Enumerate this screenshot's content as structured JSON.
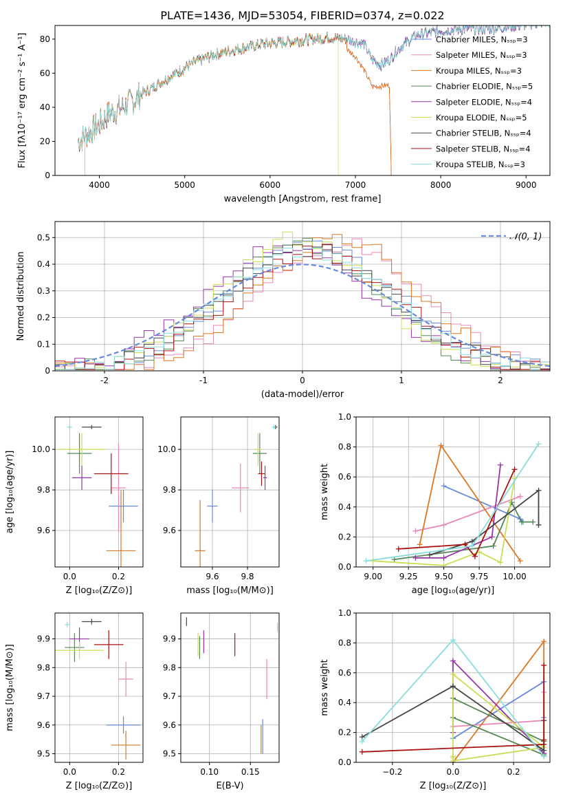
{
  "figure": {
    "title": "PLATE=1436, MJD=53054, FIBERID=0374, z=0.022"
  },
  "colors": [
    "#6688dd",
    "#e888b8",
    "#dd7722",
    "#558855",
    "#9933aa",
    "#ccdd55",
    "#444444",
    "#aa1111",
    "#88dddd"
  ],
  "models": [
    "Chabrier MILES",
    "Salpeter MILES",
    "Kroupa MILES",
    "Chabrier ELODIE",
    "Salpeter ELODIE",
    "Kroupa ELODIE",
    "Chabrier STELIB",
    "Salpeter STELIB",
    "Kroupa STELIB"
  ],
  "chart_data": [
    {
      "type": "line",
      "id": "spectrum",
      "xlabel": "wavelength [Angstrom, rest frame]",
      "ylabel": "Flux [fλ10⁻¹⁷ erg cm⁻² s⁻¹ A⁻¹]",
      "xlim": [
        3480,
        9280
      ],
      "ylim": [
        0,
        88
      ],
      "xticks": [
        4000,
        5000,
        6000,
        7000,
        8000,
        9000
      ],
      "yticks": [
        0,
        20,
        40,
        60,
        80
      ],
      "legend_position": "right",
      "series": [
        {
          "name": "Chabrier MILES, Nₛₛₚ=3"
        },
        {
          "name": "Salpeter MILES, Nₛₛₚ=3"
        },
        {
          "name": "Kroupa MILES, Nₛₛₚ=3"
        },
        {
          "name": "Chabrier ELODIE, Nₛₛₚ=5"
        },
        {
          "name": "Salpeter ELODIE, Nₛₛₚ=4"
        },
        {
          "name": "Kroupa ELODIE, Nₛₛₚ=5"
        },
        {
          "name": "Chabrier STELIB, Nₛₛₚ=4"
        },
        {
          "name": "Salpeter STELIB, Nₛₛₚ=4"
        },
        {
          "name": "Kroupa STELIB, Nₛₛₚ=3"
        }
      ],
      "continuum": [
        [
          3750,
          20
        ],
        [
          3900,
          26
        ],
        [
          4000,
          30
        ],
        [
          4100,
          36
        ],
        [
          4200,
          38
        ],
        [
          4300,
          41
        ],
        [
          4400,
          44
        ],
        [
          4500,
          48
        ],
        [
          4700,
          54
        ],
        [
          4900,
          60
        ],
        [
          5100,
          66
        ],
        [
          5300,
          70
        ],
        [
          5500,
          73
        ],
        [
          5700,
          75
        ],
        [
          5900,
          77
        ],
        [
          6100,
          78
        ],
        [
          6300,
          79
        ],
        [
          6500,
          80
        ],
        [
          6700,
          81
        ],
        [
          6900,
          80
        ],
        [
          7100,
          77
        ],
        [
          7200,
          68
        ],
        [
          7300,
          65
        ],
        [
          7400,
          68
        ],
        [
          7500,
          74
        ],
        [
          7700,
          82
        ],
        [
          8000,
          85
        ],
        [
          8300,
          86
        ],
        [
          8600,
          86
        ],
        [
          8900,
          88
        ],
        [
          9200,
          90
        ]
      ],
      "orange_red_branch": [
        [
          6900,
          74
        ],
        [
          7000,
          70
        ],
        [
          7100,
          62
        ],
        [
          7200,
          52
        ],
        [
          7400,
          53
        ],
        [
          7420,
          0
        ]
      ],
      "features": [
        {
          "x": 3830,
          "y": 0
        },
        {
          "x": 4330,
          "y": 34
        },
        {
          "x": 5180,
          "y": 48
        },
        {
          "x": 5890,
          "y": 58
        },
        {
          "x": 6560,
          "y": 65
        },
        {
          "x": 6800,
          "y": 0
        },
        {
          "x": 7420,
          "y": 0
        }
      ]
    },
    {
      "type": "bar",
      "id": "residual-hist",
      "xlabel": "(data-model)/error",
      "ylabel": "Normed distribution",
      "xlim": [
        -2.5,
        2.5
      ],
      "ylim": [
        0,
        0.56
      ],
      "xticks": [
        -2,
        -1,
        0,
        1,
        2
      ],
      "yticks": [
        0.0,
        0.1,
        0.2,
        0.3,
        0.4,
        0.5
      ],
      "legend": "𝒩(0, 1)",
      "legend_position": "top-right",
      "bin_width": 0.1,
      "series": [
        {
          "mu": 0.1,
          "sigma": 0.85,
          "peak": 0.47
        },
        {
          "mu": 0.4,
          "sigma": 0.85,
          "peak": 0.47
        },
        {
          "mu": 0.35,
          "sigma": 0.8,
          "peak": 0.5
        },
        {
          "mu": 0.0,
          "sigma": 0.8,
          "peak": 0.47
        },
        {
          "mu": -0.15,
          "sigma": 0.85,
          "peak": 0.46
        },
        {
          "mu": -0.05,
          "sigma": 0.78,
          "peak": 0.5
        },
        {
          "mu": 0.05,
          "sigma": 0.85,
          "peak": 0.46
        },
        {
          "mu": 0.1,
          "sigma": 0.85,
          "peak": 0.45
        },
        {
          "mu": 0.05,
          "sigma": 0.85,
          "peak": 0.46
        }
      ]
    },
    {
      "type": "scatter",
      "id": "age-vs-Z",
      "xlabel": "Z [log₁₀(Z/Z⊙)]",
      "ylabel": "age  [log₁₀(age/yr)]",
      "xlim": [
        -0.06,
        0.3
      ],
      "ylim": [
        9.42,
        10.16
      ],
      "xticks": [
        0.0,
        0.2
      ],
      "xticklabels": [
        "0.0",
        "0.2"
      ],
      "yticks": [
        9.6,
        9.8,
        10.0
      ],
      "yticklabels": [
        "9.6",
        "9.8",
        "10.0"
      ],
      "points": [
        {
          "x": 0.22,
          "y": 9.72,
          "ex": 0.06,
          "ey": 0.08
        },
        {
          "x": 0.2,
          "y": 9.81,
          "ex": 0.03,
          "ey": 0.22
        },
        {
          "x": 0.21,
          "y": 9.5,
          "ex": 0.06,
          "ey": 0.3
        },
        {
          "x": 0.04,
          "y": 9.98,
          "ex": 0.05,
          "ey": 0.1
        },
        {
          "x": 0.05,
          "y": 9.86,
          "ex": 0.04,
          "ey": 0.06
        },
        {
          "x": 0.05,
          "y": 10.0,
          "ex": 0.1,
          "ey": 0.08
        },
        {
          "x": 0.09,
          "y": 10.11,
          "ex": 0.04,
          "ey": 0.01
        },
        {
          "x": 0.17,
          "y": 9.88,
          "ex": 0.07,
          "ey": 0.1
        },
        {
          "x": 0.0,
          "y": 10.11,
          "ex": 0.01,
          "ey": 0.01
        }
      ]
    },
    {
      "type": "scatter",
      "id": "age-vs-mass",
      "xlabel": "mass [log₁₀(M/M⊙)]",
      "ylabel": "",
      "xlim": [
        9.42,
        9.98
      ],
      "ylim": [
        9.42,
        10.16
      ],
      "xticks": [
        9.6,
        9.8
      ],
      "xticklabels": [
        "9.6",
        "9.8"
      ],
      "yticks": [
        9.6,
        9.8,
        10.0
      ],
      "yticklabels": [
        "9.6",
        "9.8",
        "10.0"
      ],
      "points": [
        {
          "x": 9.6,
          "y": 9.72,
          "ex": 0.03,
          "ey": 0.08
        },
        {
          "x": 9.76,
          "y": 9.81,
          "ex": 0.05,
          "ey": 0.12
        },
        {
          "x": 9.53,
          "y": 9.5,
          "ex": 0.03,
          "ey": 0.25
        },
        {
          "x": 9.87,
          "y": 9.98,
          "ex": 0.04,
          "ey": 0.1
        },
        {
          "x": 9.9,
          "y": 9.86,
          "ex": 0.01,
          "ey": 0.06
        },
        {
          "x": 9.86,
          "y": 10.0,
          "ex": 0.02,
          "ey": 0.08
        },
        {
          "x": 9.96,
          "y": 10.11,
          "ex": 0.01,
          "ey": 0.01
        },
        {
          "x": 9.88,
          "y": 9.88,
          "ex": 0.02,
          "ey": 0.06
        },
        {
          "x": 9.95,
          "y": 10.11,
          "ex": 0.01,
          "ey": 0.01
        }
      ]
    },
    {
      "type": "line",
      "id": "weight-vs-age",
      "xlabel": "age  [log₁₀(age/yr)]",
      "ylabel": "mass weight",
      "xlim": [
        8.88,
        10.25
      ],
      "ylim": [
        0.0,
        1.0
      ],
      "xticks": [
        9.0,
        9.25,
        9.5,
        9.75,
        10.0
      ],
      "xticklabels": [
        "9.00",
        "9.25",
        "9.50",
        "9.75",
        "10.00"
      ],
      "yticks": [
        0.0,
        0.2,
        0.4,
        0.6,
        0.8,
        1.0
      ],
      "yticklabels": [
        "0.0",
        "0.2",
        "0.4",
        "0.6",
        "0.8",
        "1.0"
      ],
      "series": [
        {
          "x": [
            9.5,
            10.04,
            10.06
          ],
          "y": [
            0.54,
            0.32,
            0.3
          ]
        },
        {
          "x": [
            9.3,
            9.5,
            10.04
          ],
          "y": [
            0.24,
            0.28,
            0.47
          ]
        },
        {
          "x": [
            9.33,
            9.48,
            10.04
          ],
          "y": [
            0.15,
            0.81,
            0.04
          ]
        },
        {
          "x": [
            9.15,
            9.85,
            9.98,
            10.05,
            10.13
          ],
          "y": [
            0.05,
            0.14,
            0.43,
            0.3,
            0.3
          ]
        },
        {
          "x": [
            9.3,
            9.5,
            9.84,
            9.9
          ],
          "y": [
            0.06,
            0.06,
            0.2,
            0.68
          ]
        },
        {
          "x": [
            9.0,
            9.5,
            9.75,
            9.9,
            10.0
          ],
          "y": [
            0.04,
            0.01,
            0.1,
            0.03,
            0.59
          ]
        },
        {
          "x": [
            9.4,
            9.7,
            10.17,
            10.17
          ],
          "y": [
            0.08,
            0.17,
            0.51,
            0.28
          ]
        },
        {
          "x": [
            9.18,
            9.65,
            9.72,
            10.0
          ],
          "y": [
            0.12,
            0.15,
            0.07,
            0.65
          ]
        },
        {
          "x": [
            8.95,
            9.7,
            10.17
          ],
          "y": [
            0.04,
            0.14,
            0.82
          ]
        }
      ]
    },
    {
      "type": "scatter",
      "id": "mass-vs-Z",
      "xlabel": "Z [log₁₀(Z/Z⊙)]",
      "ylabel": "mass [log₁₀(M/M⊙)]",
      "xlim": [
        -0.06,
        0.3
      ],
      "ylim": [
        9.47,
        9.99
      ],
      "xticks": [
        0.0,
        0.2
      ],
      "xticklabels": [
        "0.0",
        "0.2"
      ],
      "yticks": [
        9.5,
        9.6,
        9.7,
        9.8,
        9.9
      ],
      "yticklabels": [
        "9.5",
        "9.6",
        "9.7",
        "9.8",
        "9.9"
      ],
      "points": [
        {
          "x": 0.22,
          "y": 9.6,
          "ex": 0.07,
          "ey": 0.03
        },
        {
          "x": 0.23,
          "y": 9.76,
          "ex": 0.03,
          "ey": 0.06
        },
        {
          "x": 0.23,
          "y": 9.53,
          "ex": 0.06,
          "ey": 0.05
        },
        {
          "x": 0.02,
          "y": 9.87,
          "ex": 0.04,
          "ey": 0.05
        },
        {
          "x": 0.04,
          "y": 9.9,
          "ex": 0.04,
          "ey": 0.04
        },
        {
          "x": 0.04,
          "y": 9.86,
          "ex": 0.1,
          "ey": 0.03
        },
        {
          "x": 0.09,
          "y": 9.96,
          "ex": 0.04,
          "ey": 0.01
        },
        {
          "x": 0.16,
          "y": 9.88,
          "ex": 0.06,
          "ey": 0.05
        },
        {
          "x": -0.01,
          "y": 9.95,
          "ex": 0.01,
          "ey": 0.01
        }
      ]
    },
    {
      "type": "scatter",
      "id": "mass-vs-EBV",
      "xlabel": "E(B-V)",
      "ylabel": "",
      "xlim": [
        0.065,
        0.185
      ],
      "ylim": [
        9.47,
        9.99
      ],
      "xticks": [
        0.1,
        0.15
      ],
      "xticklabels": [
        "0.10",
        "0.15"
      ],
      "yticks": [
        9.5,
        9.6,
        9.7,
        9.8,
        9.9
      ],
      "yticklabels": [
        "9.5",
        "9.6",
        "9.7",
        "9.8",
        "9.9"
      ],
      "points": [
        {
          "x": 0.165,
          "y": 9.56,
          "ex": 0,
          "ey": 0.06
        },
        {
          "x": 0.17,
          "y": 9.76,
          "ex": 0,
          "ey": 0.07
        },
        {
          "x": 0.163,
          "y": 9.55,
          "ex": 0,
          "ey": 0.05
        },
        {
          "x": 0.088,
          "y": 9.87,
          "ex": 0,
          "ey": 0.04
        },
        {
          "x": 0.093,
          "y": 9.89,
          "ex": 0,
          "ey": 0.04
        },
        {
          "x": 0.086,
          "y": 9.88,
          "ex": 0,
          "ey": 0.04
        },
        {
          "x": 0.072,
          "y": 9.96,
          "ex": 0,
          "ey": 0.015
        },
        {
          "x": 0.131,
          "y": 9.88,
          "ex": 0,
          "ey": 0.04
        },
        {
          "x": 0.183,
          "y": 9.94,
          "ex": 0,
          "ey": 0.015
        }
      ]
    },
    {
      "type": "line",
      "id": "weight-vs-Z",
      "xlabel": "Z [log₁₀(Z/Z⊙)]",
      "ylabel": "mass weight",
      "xlim": [
        -0.32,
        0.32
      ],
      "ylim": [
        0.0,
        1.0
      ],
      "xticks": [
        -0.2,
        0.0,
        0.2
      ],
      "xticklabels": [
        "−0.2",
        "0.0",
        "0.2"
      ],
      "yticks": [
        0.0,
        0.2,
        0.4,
        0.6,
        0.8,
        1.0
      ],
      "yticklabels": [
        "0.0",
        "0.2",
        "0.4",
        "0.6",
        "0.8",
        "1.0"
      ],
      "series": [
        {
          "x": [
            0.0,
            0.3,
            0.3
          ],
          "y": [
            0.16,
            0.54,
            0.3
          ]
        },
        {
          "x": [
            0.0,
            0.3,
            0.3
          ],
          "y": [
            0.24,
            0.28,
            0.47
          ]
        },
        {
          "x": [
            0.0,
            0.3,
            0.3
          ],
          "y": [
            0.0,
            0.81,
            0.04
          ]
        },
        {
          "x": [
            0.0,
            0.3,
            0.3,
            0.0,
            0.0
          ],
          "y": [
            0.3,
            0.05,
            0.14,
            0.43,
            0.3
          ]
        },
        {
          "x": [
            0.0,
            0.0,
            0.3,
            0.3
          ],
          "y": [
            0.2,
            0.68,
            0.06,
            0.06
          ]
        },
        {
          "x": [
            0.0,
            0.0,
            0.3,
            0.0,
            0.0
          ],
          "y": [
            0.03,
            0.59,
            0.1,
            0.01,
            0.04
          ]
        },
        {
          "x": [
            -0.3,
            0.0,
            0.3,
            0.3
          ],
          "y": [
            0.17,
            0.51,
            0.08,
            0.28
          ]
        },
        {
          "x": [
            -0.3,
            0.3,
            0.3,
            0.3
          ],
          "y": [
            0.07,
            0.12,
            0.65,
            0.15
          ]
        },
        {
          "x": [
            -0.3,
            0.0,
            0.3
          ],
          "y": [
            0.14,
            0.82,
            0.04
          ]
        }
      ]
    }
  ]
}
